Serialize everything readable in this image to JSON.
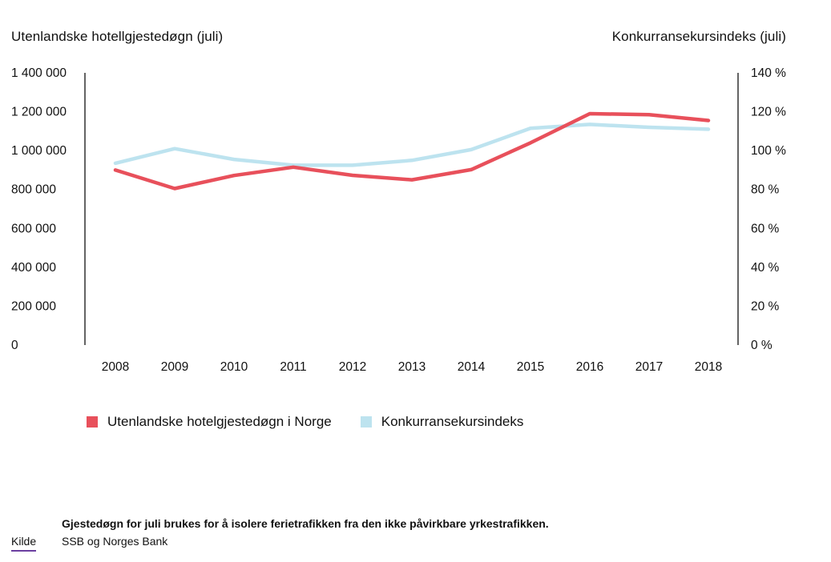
{
  "chart_data": {
    "type": "line",
    "left_axis_title": "Utenlandske hotellgjestedøgn (juli)",
    "right_axis_title": "Konkurransekursindeks (juli)",
    "x": [
      "2008",
      "2009",
      "2010",
      "2011",
      "2012",
      "2013",
      "2014",
      "2015",
      "2016",
      "2017",
      "2018"
    ],
    "left_ylim": [
      0,
      1400000
    ],
    "right_ylim": [
      0,
      140
    ],
    "left_ticks": [
      "0",
      "200 000",
      "400 000",
      "600 000",
      "800 000",
      "1 000 000",
      "1 200 000",
      "1 400 000"
    ],
    "right_ticks": [
      "0 %",
      "20 %",
      "40 %",
      "60 %",
      "80 %",
      "100 %",
      "120 %",
      "140 %"
    ],
    "grid": false,
    "legend_placement": "bottom-left",
    "series": [
      {
        "name": "Utenlandske hotelgjestedøgn i Norge",
        "axis": "left",
        "color": "#e8505b",
        "values": [
          900000,
          805000,
          872000,
          915000,
          873000,
          850000,
          902000,
          1040000,
          1190000,
          1185000,
          1155000
        ]
      },
      {
        "name": "Konkurransekursindeks",
        "axis": "right",
        "color": "#bde3ef",
        "values": [
          93.5,
          101,
          95.5,
          92.5,
          92.5,
          95,
          100.5,
          111.5,
          113.5,
          112,
          111
        ]
      }
    ]
  },
  "footer": {
    "note": "Gjestedøgn for juli brukes for å isolere ferietrafikken fra den ikke påvirkbare yrkestrafikken.",
    "source_label": "Kilde",
    "source_text": "SSB og Norges Bank"
  }
}
